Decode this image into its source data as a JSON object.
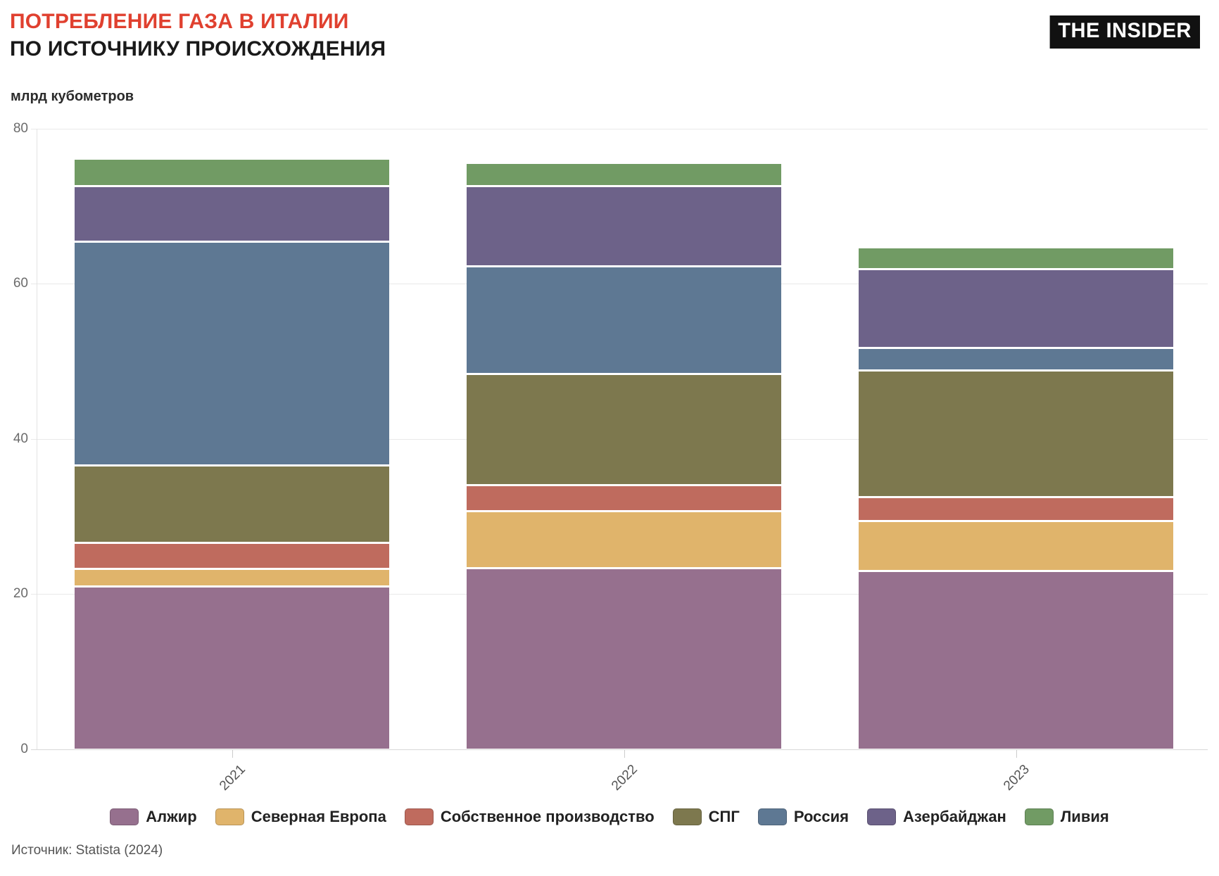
{
  "header": {
    "title_line1": "ПОТРЕБЛЕНИЕ ГАЗА В ИТАЛИИ",
    "title_line2": "ПО ИСТОЧНИКУ ПРОИСХОЖДЕНИЯ",
    "logo_text": "THE INSIDER"
  },
  "source_note": "Источник: Statista (2024)",
  "colors": {
    "title_accent": "#E0402F",
    "title_main": "#1a1a1a",
    "gridline": "#e9e9e9",
    "axis_text": "#6b6b6b",
    "logo_bg": "#111111",
    "logo_text": "#ffffff"
  },
  "chart_data": {
    "type": "bar",
    "stacked": true,
    "title": "ПОТРЕБЛЕНИЕ ГАЗА В ИТАЛИИ ПО ИСТОЧНИКУ ПРОИСХОЖДЕНИЯ",
    "ylabel": "млрд кубометров",
    "xlabel": "",
    "ylim": [
      0,
      80
    ],
    "yticks": [
      0,
      20,
      40,
      60,
      80
    ],
    "grid": true,
    "legend_position": "bottom",
    "categories": [
      "2021",
      "2022",
      "2023"
    ],
    "series": [
      {
        "name": "Алжир",
        "color": "#96708E",
        "values": [
          21.1,
          23.5,
          23.1
        ]
      },
      {
        "name": "Северная Европа",
        "color": "#E0B46B",
        "values": [
          2.3,
          7.3,
          6.4
        ]
      },
      {
        "name": "Собственное производство",
        "color": "#BF6B5E",
        "values": [
          3.3,
          3.4,
          3.1
        ]
      },
      {
        "name": "СПГ",
        "color": "#7D784E",
        "values": [
          10.0,
          14.3,
          16.4
        ]
      },
      {
        "name": "Россия",
        "color": "#5E7893",
        "values": [
          28.9,
          13.9,
          2.9
        ]
      },
      {
        "name": "Азербайджан",
        "color": "#6D6289",
        "values": [
          7.1,
          10.3,
          10.1
        ]
      },
      {
        "name": "Ливия",
        "color": "#719B64",
        "values": [
          3.3,
          2.8,
          2.6
        ]
      }
    ]
  }
}
